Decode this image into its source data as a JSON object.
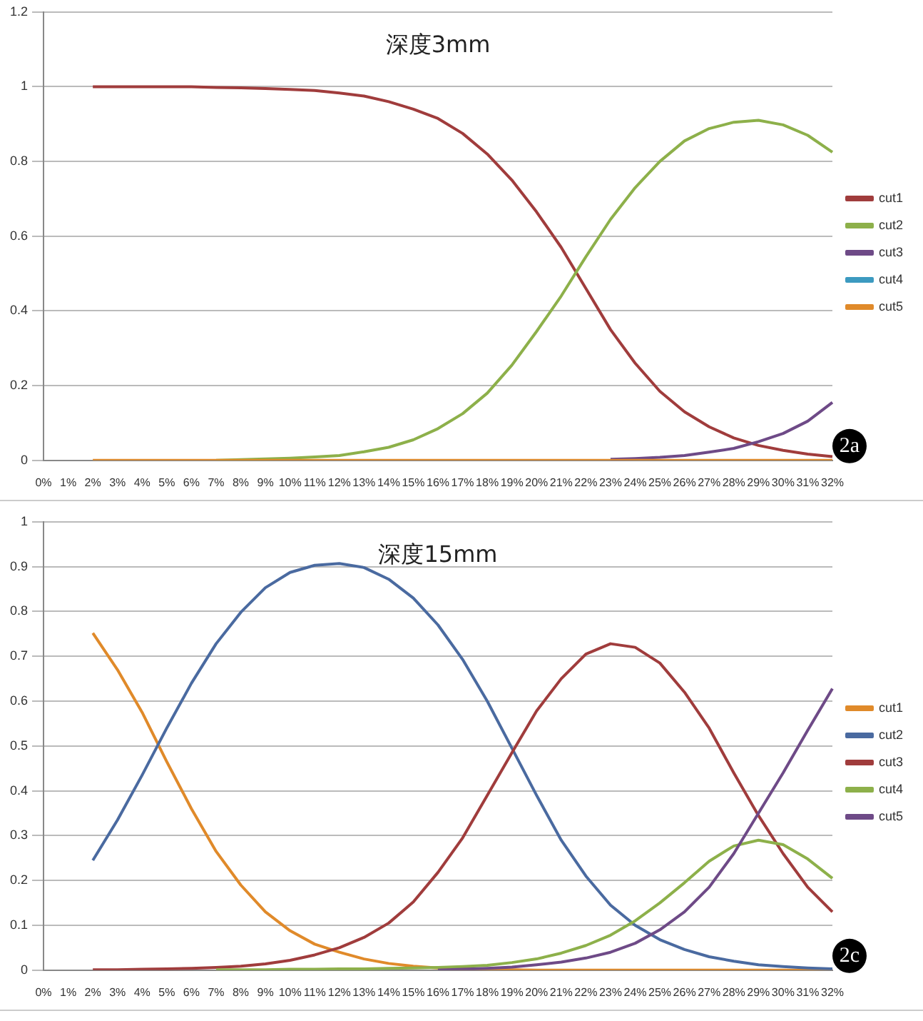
{
  "chart_data": [
    {
      "type": "line",
      "title": "深度3mm",
      "categories": [
        "0%",
        "1%",
        "2%",
        "3%",
        "4%",
        "5%",
        "6%",
        "7%",
        "8%",
        "9%",
        "10%",
        "11%",
        "12%",
        "13%",
        "14%",
        "15%",
        "16%",
        "17%",
        "18%",
        "19%",
        "20%",
        "21%",
        "22%",
        "23%",
        "24%",
        "25%",
        "26%",
        "27%",
        "28%",
        "29%",
        "30%",
        "31%",
        "32%"
      ],
      "series": [
        {
          "name": "cut1",
          "color": "#a03c3c",
          "values": [
            null,
            null,
            1,
            1,
            1,
            1,
            1,
            0.998,
            0.997,
            0.995,
            0.993,
            0.99,
            0.983,
            0.975,
            0.96,
            0.94,
            0.915,
            0.875,
            0.82,
            0.75,
            0.665,
            0.57,
            0.46,
            0.35,
            0.26,
            0.185,
            0.13,
            0.09,
            0.06,
            0.04,
            0.027,
            0.017,
            0.01
          ]
        },
        {
          "name": "cut2",
          "color": "#8db04a",
          "values": [
            null,
            null,
            null,
            null,
            null,
            null,
            null,
            0,
            0.002,
            0.004,
            0.006,
            0.009,
            0.013,
            0.023,
            0.035,
            0.055,
            0.085,
            0.125,
            0.18,
            0.255,
            0.345,
            0.44,
            0.545,
            0.645,
            0.73,
            0.8,
            0.855,
            0.888,
            0.905,
            0.91,
            0.898,
            0.87,
            0.825
          ]
        },
        {
          "name": "cut3",
          "color": "#6e4a87",
          "values": [
            null,
            null,
            null,
            null,
            null,
            null,
            null,
            null,
            null,
            null,
            null,
            null,
            null,
            null,
            null,
            null,
            null,
            null,
            null,
            null,
            null,
            null,
            null,
            0.003,
            0.005,
            0.008,
            0.013,
            0.022,
            0.032,
            0.05,
            0.072,
            0.105,
            0.155
          ]
        },
        {
          "name": "cut4",
          "color": "#3c9ac0",
          "values": [
            null,
            null,
            null,
            null,
            null,
            null,
            null,
            null,
            null,
            null,
            null,
            null,
            null,
            null,
            null,
            null,
            null,
            null,
            null,
            null,
            null,
            null,
            null,
            null,
            null,
            null,
            null,
            null,
            null,
            null,
            null,
            null,
            null
          ]
        },
        {
          "name": "cut5",
          "color": "#e08a2a",
          "values": [
            null,
            null,
            0,
            0,
            0,
            0,
            0,
            0,
            0,
            0,
            0,
            0,
            0,
            0,
            0,
            0,
            0,
            0,
            0,
            0,
            0,
            0,
            0,
            0,
            0,
            0,
            0,
            0,
            0,
            0,
            0,
            0,
            0
          ]
        }
      ],
      "ylim": [
        0,
        1.2
      ],
      "yticks": [
        0,
        0.2,
        0.4,
        0.6,
        0.8,
        1,
        1.2
      ],
      "grid": "y",
      "legend": "right",
      "marker": "none",
      "annotations": [
        "2a"
      ]
    },
    {
      "type": "line",
      "title": "深度15mm",
      "categories": [
        "0%",
        "1%",
        "2%",
        "3%",
        "4%",
        "5%",
        "6%",
        "7%",
        "8%",
        "9%",
        "10%",
        "11%",
        "12%",
        "13%",
        "14%",
        "15%",
        "16%",
        "17%",
        "18%",
        "19%",
        "20%",
        "21%",
        "22%",
        "23%",
        "24%",
        "25%",
        "26%",
        "27%",
        "28%",
        "29%",
        "30%",
        "31%",
        "32%"
      ],
      "series": [
        {
          "name": "cut1",
          "color": "#e08a2a",
          "values": [
            null,
            null,
            0.752,
            0.67,
            0.575,
            0.465,
            0.36,
            0.265,
            0.19,
            0.13,
            0.088,
            0.058,
            0.04,
            0.025,
            0.015,
            0.009,
            0.005,
            0.003,
            0.002,
            0.001,
            0,
            0,
            0,
            0,
            0,
            0,
            0,
            0,
            0,
            0,
            0,
            0,
            0
          ]
        },
        {
          "name": "cut2",
          "color": "#4a6aa0",
          "values": [
            null,
            null,
            0.245,
            0.335,
            0.435,
            0.54,
            0.64,
            0.728,
            0.798,
            0.853,
            0.887,
            0.903,
            0.907,
            0.898,
            0.872,
            0.83,
            0.77,
            0.693,
            0.6,
            0.495,
            0.39,
            0.29,
            0.21,
            0.145,
            0.1,
            0.068,
            0.046,
            0.03,
            0.02,
            0.012,
            0.008,
            0.005,
            0.003
          ]
        },
        {
          "name": "cut3",
          "color": "#a03c3c",
          "values": [
            null,
            null,
            0.001,
            0.001,
            0.002,
            0.003,
            0.004,
            0.006,
            0.009,
            0.014,
            0.022,
            0.034,
            0.05,
            0.073,
            0.105,
            0.152,
            0.218,
            0.295,
            0.39,
            0.485,
            0.578,
            0.65,
            0.705,
            0.728,
            0.72,
            0.685,
            0.62,
            0.54,
            0.44,
            0.345,
            0.26,
            0.185,
            0.13
          ]
        },
        {
          "name": "cut4",
          "color": "#8db04a",
          "values": [
            null,
            null,
            null,
            null,
            null,
            null,
            null,
            0.001,
            0.001,
            0.001,
            0.002,
            0.002,
            0.003,
            0.003,
            0.004,
            0.005,
            0.006,
            0.008,
            0.011,
            0.017,
            0.025,
            0.038,
            0.055,
            0.078,
            0.11,
            0.15,
            0.195,
            0.243,
            0.277,
            0.29,
            0.28,
            0.248,
            0.205
          ]
        },
        {
          "name": "cut5",
          "color": "#6e4a87",
          "values": [
            null,
            null,
            null,
            null,
            null,
            null,
            null,
            null,
            null,
            null,
            null,
            null,
            null,
            null,
            null,
            null,
            0,
            0.002,
            0.004,
            0.007,
            0.012,
            0.018,
            0.027,
            0.04,
            0.06,
            0.09,
            0.13,
            0.185,
            0.26,
            0.35,
            0.44,
            0.535,
            0.628
          ]
        }
      ],
      "ylim": [
        0,
        1
      ],
      "yticks": [
        0,
        0.1,
        0.2,
        0.3,
        0.4,
        0.5,
        0.6,
        0.7,
        0.8,
        0.9,
        1
      ],
      "grid": "y",
      "legend": "right",
      "marker": "none",
      "annotations": [
        "2c"
      ]
    }
  ]
}
